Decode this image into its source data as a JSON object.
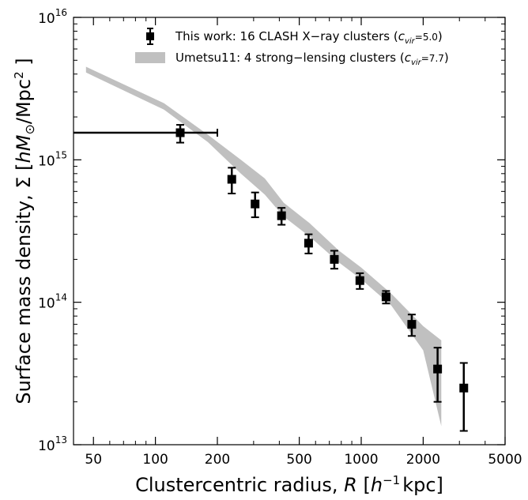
{
  "chart_data": {
    "type": "scatter",
    "xlabel": "Clustercentric radius, R [h⁻¹ kpc]",
    "ylabel": "Surface mass density, Σ [hM⊙/Mpc²]",
    "xscale": "log",
    "yscale": "log",
    "xlim": [
      40,
      5000
    ],
    "ylim": [
      10000000000000.0,
      1e+16
    ],
    "x_ticks": [
      50,
      100,
      200,
      500,
      1000,
      2000,
      5000
    ],
    "x_tick_labels": [
      "50",
      "100",
      "200",
      "500",
      "1000",
      "2000",
      "5000"
    ],
    "y_ticks": [
      10000000000000.0,
      100000000000000.0,
      1000000000000000.0,
      1e+16
    ],
    "y_tick_labels": [
      {
        "base": "10",
        "exp": "13"
      },
      {
        "base": "10",
        "exp": "14"
      },
      {
        "base": "10",
        "exp": "15"
      },
      {
        "base": "10",
        "exp": "16"
      }
    ],
    "grid": false,
    "legend_position": "top-right",
    "series": [
      {
        "name": "This work: 16 CLASH X−ray clusters",
        "param": {
          "symbol": "c",
          "sub": "vir",
          "value": "=5.0"
        },
        "kind": "points-with-errorbars",
        "color": "#000000",
        "points": [
          {
            "x": 132,
            "y": 1550000000000000.0,
            "ylo": 1320000000000000.0,
            "yhi": 1760000000000000.0,
            "xlo": 40,
            "xhi": 200
          },
          {
            "x": 235,
            "y": 730000000000000.0,
            "ylo": 580000000000000.0,
            "yhi": 880000000000000.0
          },
          {
            "x": 305,
            "y": 490000000000000.0,
            "ylo": 395000000000000.0,
            "yhi": 590000000000000.0
          },
          {
            "x": 410,
            "y": 405000000000000.0,
            "ylo": 350000000000000.0,
            "yhi": 460000000000000.0
          },
          {
            "x": 555,
            "y": 260000000000000.0,
            "ylo": 220000000000000.0,
            "yhi": 300000000000000.0
          },
          {
            "x": 740,
            "y": 200000000000000.0,
            "ylo": 172000000000000.0,
            "yhi": 230000000000000.0
          },
          {
            "x": 985,
            "y": 142000000000000.0,
            "ylo": 124000000000000.0,
            "yhi": 160000000000000.0
          },
          {
            "x": 1320,
            "y": 109000000000000.0,
            "ylo": 98000000000000.0,
            "yhi": 120000000000000.0
          },
          {
            "x": 1760,
            "y": 70000000000000.0,
            "ylo": 58000000000000.0,
            "yhi": 82000000000000.0
          },
          {
            "x": 2350,
            "y": 34000000000000.0,
            "ylo": 20000000000000.0,
            "yhi": 48000000000000.0
          },
          {
            "x": 3150,
            "y": 25000000000000.0,
            "ylo": 12500000000000.0,
            "yhi": 37500000000000.0
          }
        ]
      },
      {
        "name": "Umetsu11: 4 strong−lensing clusters",
        "param": {
          "symbol": "c",
          "sub": "vir",
          "value": "=7.7"
        },
        "kind": "band",
        "color": "#c0c0c0",
        "x": [
          46,
          110,
          180,
          260,
          340,
          420,
          560,
          780,
          1000,
          1400,
          2000,
          2450
        ],
        "upper": [
          4500000000000000.0,
          2500000000000000.0,
          1500000000000000.0,
          1000000000000000.0,
          740000000000000.0,
          500000000000000.0,
          360000000000000.0,
          230000000000000.0,
          175000000000000.0,
          115000000000000.0,
          68000000000000.0,
          54000000000000.0
        ],
        "lower": [
          4100000000000000.0,
          2250000000000000.0,
          1330000000000000.0,
          800000000000000.0,
          570000000000000.0,
          400000000000000.0,
          290000000000000.0,
          190000000000000.0,
          145000000000000.0,
          95000000000000.0,
          46000000000000.0,
          13500000000000.0
        ]
      }
    ]
  }
}
